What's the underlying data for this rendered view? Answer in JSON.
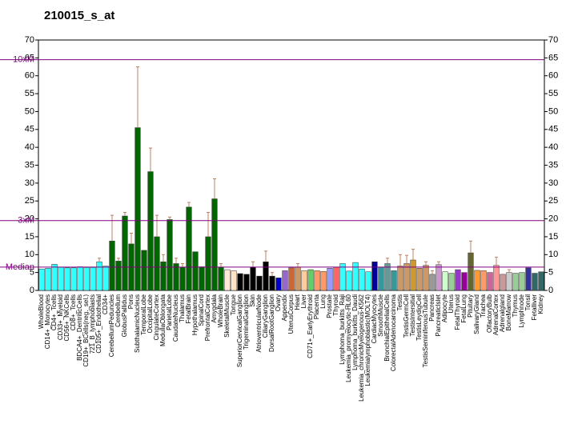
{
  "chart_data": {
    "type": "bar",
    "title": "210015_s_at",
    "categories": [
      "WholeBlood",
      "CD14+_Monocytes",
      "CD4+_Tcells",
      "CD33+_Myeloid",
      "CD56+_NKCells",
      "CD8+_Tcells",
      "BDCA4+_DentriticCells",
      "CD19+_BCells(neg._sel.)",
      "721_B_lymphoblasts",
      "CD105+_Endothelial",
      "CD34+",
      "CerebellumPeduncles",
      "Cerebellum",
      "GlobusPallidus",
      "Pons",
      "SubthalamicNucleus",
      "TemporalLobe",
      "OccipitalLobe",
      "CingulateCortex",
      "MedullaOblongata",
      "ParietalLobe",
      "CaudateNucleus",
      "Thalamus",
      "FetalBrain",
      "Hypothalamus",
      "SpinalCord",
      "PrefrontalCortex",
      "Amygdala",
      "WholeBrain",
      "SkeletalMuscle",
      "Tongue",
      "SuperiorCervicalGanglion",
      "TrigeminalGanglion",
      "Skin",
      "AtrioventricularNode",
      "CiliaryGanglion",
      "DorsalRootGanglion",
      "Ovary",
      "Appendix",
      "UterusCorpus",
      "Heart",
      "Liver",
      "CD71+_EarlyErythroid",
      "Placenta",
      "Lung",
      "Prostate",
      "Thyroid",
      "Lymphoma_burkitts_Raji",
      "Leukemia_promyelocytic-HL60",
      "Lymphoma_burkitts_Daudi",
      "Leukemia_chronicMyelogenous-K562",
      "Leukemialymphoblastic(MOLT4)",
      "CardiacMyocytes",
      "SmoothMuscle",
      "BronchialEpithelialCells",
      "ColorectalAdenocarcinoma",
      "Testis",
      "TestisGermCell",
      "TestisIntersitial",
      "TestisLeydigCell",
      "TestisSeminiferousTubule",
      "Pancreas",
      "PancreaticIslet",
      "Adipocyte",
      "Uterus",
      "FetalThyroid",
      "FetalLung",
      "Pituitary",
      "SalivaryGland",
      "Trachea",
      "OlfactoryBulb",
      "AdrenalCortex",
      "Adrenalgland",
      "BoneMarrow",
      "Thymus",
      "Lymphnode",
      "Tonsil",
      "Fetalliver",
      "Kidney"
    ],
    "values": [
      6,
      6.2,
      7.3,
      6.5,
      6.3,
      6.3,
      6.6,
      6.4,
      6.4,
      8,
      6.8,
      13.8,
      8.2,
      20.8,
      13,
      45.5,
      11.2,
      33.2,
      15,
      8,
      19.8,
      7.5,
      6.5,
      23.3,
      10.8,
      6.6,
      15,
      25.6,
      6.5,
      5.8,
      5.5,
      4.7,
      4.5,
      6.5,
      4,
      8,
      4,
      3.5,
      5.5,
      6.3,
      6.5,
      5.5,
      5.8,
      5.5,
      5.3,
      6.2,
      6.5,
      7.5,
      5.4,
      7.8,
      6,
      5.2,
      8,
      6.5,
      7.5,
      5.5,
      6.8,
      7.5,
      8.5,
      6.2,
      7,
      4.5,
      7.2,
      5.2,
      4.8,
      5.8,
      5,
      10.5,
      5.6,
      5.5,
      5,
      7,
      4.5,
      5,
      4.8,
      5,
      6.3,
      4.8,
      5.2
    ],
    "errors": [
      null,
      null,
      null,
      null,
      null,
      null,
      null,
      null,
      null,
      1,
      null,
      7.2,
      0.8,
      1,
      3,
      17,
      null,
      6.6,
      6,
      2,
      0.7,
      1.5,
      1,
      1.3,
      null,
      null,
      6.8,
      5.6,
      1,
      null,
      null,
      null,
      null,
      1.5,
      null,
      3,
      1,
      null,
      null,
      null,
      1,
      null,
      null,
      null,
      null,
      null,
      null,
      null,
      null,
      null,
      null,
      null,
      null,
      null,
      1.5,
      null,
      3.2,
      2.3,
      3,
      null,
      1,
      1,
      0.8,
      null,
      null,
      null,
      null,
      3.3,
      null,
      null,
      null,
      2.3,
      null,
      0.8,
      null,
      null,
      null,
      null,
      null
    ],
    "colors": [
      "#33ffff",
      "#33ffff",
      "#33ffff",
      "#33ffff",
      "#33ffff",
      "#33ffff",
      "#33ffff",
      "#33ffff",
      "#33ffff",
      "#33ffff",
      "#33ffff",
      "#006600",
      "#006600",
      "#006600",
      "#006600",
      "#006600",
      "#006600",
      "#006600",
      "#006600",
      "#006600",
      "#006600",
      "#006600",
      "#006600",
      "#006600",
      "#006600",
      "#006600",
      "#006600",
      "#006600",
      "#006600",
      "#ffe8d8",
      "#ffe4c4",
      "#000000",
      "#000000",
      "#000000",
      "#000000",
      "#000000",
      "#000000",
      "#0000cc",
      "#9966cc",
      "#cc6633",
      "#cc9966",
      "#ffcc99",
      "#66cc66",
      "#ff9966",
      "#ff9966",
      "#9999ff",
      "#ff6666",
      "#33ffff",
      "#33ffff",
      "#33ffff",
      "#33ffff",
      "#33ffff",
      "#000099",
      "#339999",
      "#669999",
      "#339999",
      "#cc9966",
      "#cc9966",
      "#cc9933",
      "#cc9966",
      "#cc9966",
      "#999999",
      "#cc99cc",
      "#ccffcc",
      "#99cc99",
      "#9933cc",
      "#990099",
      "#666633",
      "#ff9933",
      "#ff9966",
      "#cc6699",
      "#ff9999",
      "#cc9999",
      "#cccccc",
      "#99cc99",
      "#99cc99",
      "#333399",
      "#336666",
      "#336666"
    ],
    "error_color": "#c08060",
    "ylim": [
      0,
      70
    ],
    "yticks": [
      0,
      5,
      10,
      15,
      20,
      25,
      30,
      35,
      40,
      45,
      50,
      55,
      60,
      65,
      70
    ],
    "y2lim": [
      0,
      70
    ],
    "y2ticks": [
      0,
      5,
      10,
      15,
      20,
      25,
      30,
      35,
      40,
      45,
      50,
      55,
      60,
      65,
      70
    ],
    "reference_lines": [
      {
        "label": "10xM",
        "value": 64.5
      },
      {
        "label": "3xM",
        "value": 19.5
      },
      {
        "label": "Median",
        "value": 6.5
      }
    ],
    "reference_color": "#800080"
  }
}
